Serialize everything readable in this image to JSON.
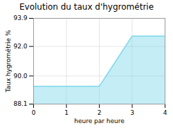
{
  "chart_data": {
    "type": "area",
    "title": "Evolution du taux d'hygrométrie",
    "xlabel": "heure par heure",
    "ylabel": "Taux hygrométrie %",
    "x": [
      0,
      1,
      2,
      3,
      4
    ],
    "values": [
      89.3,
      89.3,
      89.3,
      92.7,
      92.7
    ],
    "color": "#7dd8ea",
    "xlim": [
      0,
      4
    ],
    "xticks": [
      0,
      1,
      2,
      3,
      4
    ],
    "ylim": [
      88.1,
      93.9
    ],
    "yticks": [
      88.1,
      {
        "value": 90,
        "label": "90.0"
      },
      {
        "value": 92,
        "label": "92.0"
      },
      93.9
    ],
    "grid": true
  }
}
